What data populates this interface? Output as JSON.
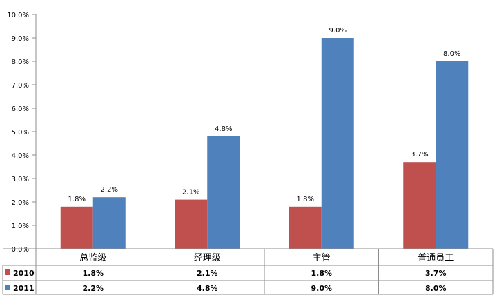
{
  "chart_data": {
    "type": "bar",
    "title": "",
    "xlabel": "",
    "ylabel": "",
    "categories": [
      "总监级",
      "经理级",
      "主管",
      "普通员工"
    ],
    "series": [
      {
        "name": "2010",
        "values": [
          1.8,
          2.1,
          1.8,
          3.7
        ],
        "labels": [
          "1.8%",
          "2.1%",
          "1.8%",
          "3.7%"
        ],
        "color": "#C0504D"
      },
      {
        "name": "2011",
        "values": [
          2.2,
          4.8,
          9.0,
          8.0
        ],
        "labels": [
          "2.2%",
          "4.8%",
          "9.0%",
          "8.0%"
        ],
        "color": "#4F81BD"
      }
    ],
    "ylim": [
      0,
      10
    ],
    "yticks": [
      0,
      1,
      2,
      3,
      4,
      5,
      6,
      7,
      8,
      9,
      10
    ],
    "ytick_labels": [
      "0.0%",
      "1.0%",
      "2.0%",
      "3.0%",
      "4.0%",
      "5.0%",
      "6.0%",
      "7.0%",
      "8.0%",
      "9.0%",
      "10.0%"
    ],
    "grid": false,
    "legend": "data-table-left"
  }
}
